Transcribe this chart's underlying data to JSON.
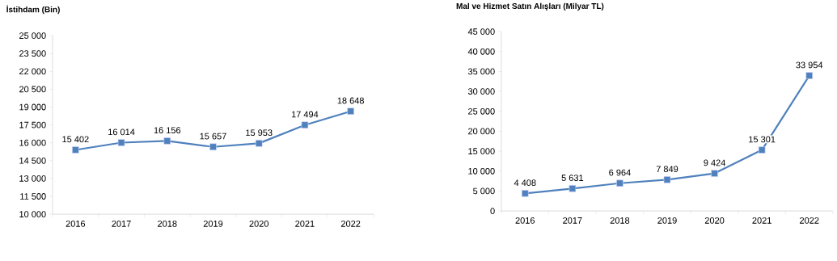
{
  "chart_data": [
    {
      "type": "line",
      "title": "İstihdam (Bin)",
      "categories": [
        "2016",
        "2017",
        "2018",
        "2019",
        "2020",
        "2021",
        "2022"
      ],
      "series": [
        {
          "color": "#4f81bd",
          "values": [
            15402,
            16014,
            16156,
            15657,
            15953,
            17494,
            18648
          ],
          "value_labels": [
            "15 402",
            "16 014",
            "16 156",
            "15 657",
            "15 953",
            "17 494",
            "18 648"
          ]
        }
      ],
      "ylim": [
        10000,
        25000
      ],
      "yticks": [
        {
          "value": 10000,
          "label": "10 000"
        },
        {
          "value": 11500,
          "label": "11 500"
        },
        {
          "value": 13000,
          "label": "13 000"
        },
        {
          "value": 14500,
          "label": "14 500"
        },
        {
          "value": 16000,
          "label": "16 000"
        },
        {
          "value": 17500,
          "label": "17 500"
        },
        {
          "value": 19000,
          "label": "19 000"
        },
        {
          "value": 20500,
          "label": "20 500"
        },
        {
          "value": 22000,
          "label": "22 000"
        },
        {
          "value": 23500,
          "label": "23 500"
        },
        {
          "value": 25000,
          "label": "25 000"
        }
      ],
      "marker": "square",
      "grid": false,
      "legend": false
    },
    {
      "type": "line",
      "title": "Mal ve Hizmet Satın Alışları (Milyar TL)",
      "categories": [
        "2016",
        "2017",
        "2018",
        "2019",
        "2020",
        "2021",
        "2022"
      ],
      "series": [
        {
          "color": "#4f81bd",
          "values": [
            4408,
            5631,
            6964,
            7849,
            9424,
            15301,
            33954
          ],
          "value_labels": [
            "4 408",
            "5 631",
            "6 964",
            "7 849",
            "9 424",
            "15 301",
            "33 954"
          ]
        }
      ],
      "ylim": [
        0,
        45000
      ],
      "yticks": [
        0,
        {
          "value": 5000,
          "label": "5 000"
        },
        {
          "value": 10000,
          "label": "10 000"
        },
        {
          "value": 15000,
          "label": "15 000"
        },
        {
          "value": 20000,
          "label": "20 000"
        },
        {
          "value": 25000,
          "label": "25 000"
        },
        {
          "value": 30000,
          "label": "30 000"
        },
        {
          "value": 35000,
          "label": "35 000"
        },
        {
          "value": 40000,
          "label": "40 000"
        },
        {
          "value": 45000,
          "label": "45 000"
        }
      ],
      "marker": "square",
      "grid": false,
      "legend": false
    }
  ]
}
